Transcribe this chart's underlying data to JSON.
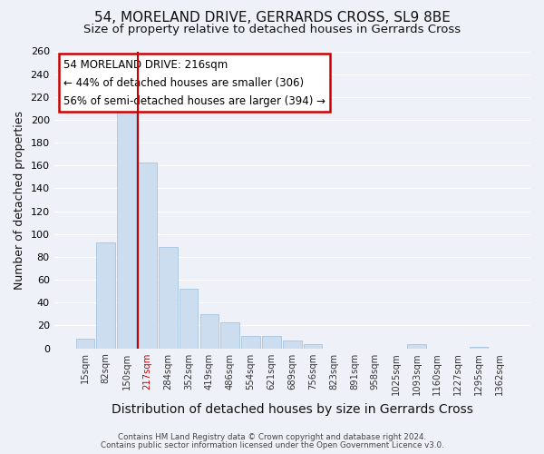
{
  "title": "54, MORELAND DRIVE, GERRARDS CROSS, SL9 8BE",
  "subtitle": "Size of property relative to detached houses in Gerrards Cross",
  "xlabel": "Distribution of detached houses by size in Gerrards Cross",
  "ylabel": "Number of detached properties",
  "bar_labels": [
    "15sqm",
    "82sqm",
    "150sqm",
    "217sqm",
    "284sqm",
    "352sqm",
    "419sqm",
    "486sqm",
    "554sqm",
    "621sqm",
    "689sqm",
    "756sqm",
    "823sqm",
    "891sqm",
    "958sqm",
    "1025sqm",
    "1093sqm",
    "1160sqm",
    "1227sqm",
    "1295sqm",
    "1362sqm"
  ],
  "bar_values": [
    8,
    93,
    213,
    163,
    89,
    52,
    30,
    23,
    11,
    11,
    7,
    4,
    0,
    0,
    0,
    0,
    4,
    0,
    0,
    1,
    0
  ],
  "bar_color": "#ccddef",
  "bar_edge_color": "#a8c4e0",
  "highlight_x_label": "217sqm",
  "highlight_color": "#cc0000",
  "ylim": [
    0,
    260
  ],
  "yticks": [
    0,
    20,
    40,
    60,
    80,
    100,
    120,
    140,
    160,
    180,
    200,
    220,
    240,
    260
  ],
  "annotation_title": "54 MORELAND DRIVE: 216sqm",
  "annotation_line1": "← 44% of detached houses are smaller (306)",
  "annotation_line2": "56% of semi-detached houses are larger (394) →",
  "annotation_box_facecolor": "#ffffff",
  "annotation_box_edgecolor": "#cc0000",
  "footnote1": "Contains HM Land Registry data © Crown copyright and database right 2024.",
  "footnote2": "Contains public sector information licensed under the Open Government Licence v3.0.",
  "background_color": "#eef2f8",
  "grid_color": "#ffffff",
  "title_fontsize": 11,
  "subtitle_fontsize": 9.5,
  "xlabel_fontsize": 10,
  "ylabel_fontsize": 9
}
